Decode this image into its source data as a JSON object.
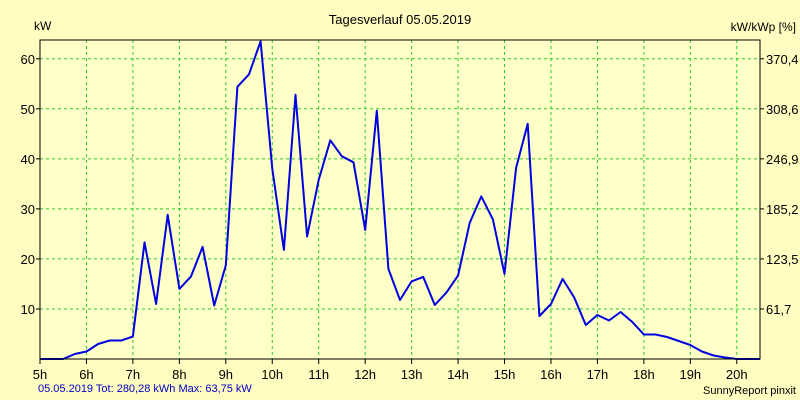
{
  "chart_data": {
    "type": "line",
    "title": "Tagesverlauf 05.05.2019",
    "ylabel_left": "kW",
    "ylabel_right": "kW/kWp [%]",
    "xlim": [
      5,
      20.5
    ],
    "ylim": [
      0,
      63.75
    ],
    "grid": true,
    "x_ticks": [
      5,
      6,
      7,
      8,
      9,
      10,
      11,
      12,
      13,
      14,
      15,
      16,
      17,
      18,
      19,
      20
    ],
    "x_tick_labels": [
      "5h",
      "6h",
      "7h",
      "8h",
      "9h",
      "10h",
      "11h",
      "12h",
      "13h",
      "14h",
      "15h",
      "16h",
      "17h",
      "18h",
      "19h",
      "20h"
    ],
    "y_ticks": [
      10,
      20,
      30,
      40,
      50,
      60
    ],
    "y_tick_labels": [
      "10",
      "20",
      "30",
      "40",
      "50",
      "60"
    ],
    "y2_ticks": [
      10,
      20,
      30,
      40,
      50,
      60
    ],
    "y2_tick_labels": [
      "61,7",
      "123,5",
      "185,2",
      "246,9",
      "308,6",
      "370,4"
    ],
    "series": [
      {
        "color": "#0000e0",
        "x": [
          5.0,
          5.25,
          5.5,
          5.75,
          6.0,
          6.25,
          6.5,
          6.75,
          7.0,
          7.25,
          7.5,
          7.75,
          8.0,
          8.25,
          8.5,
          8.75,
          9.0,
          9.25,
          9.5,
          9.75,
          10.0,
          10.25,
          10.5,
          10.75,
          11.0,
          11.25,
          11.5,
          11.75,
          12.0,
          12.25,
          12.5,
          12.75,
          13.0,
          13.25,
          13.5,
          13.75,
          14.0,
          14.25,
          14.5,
          14.75,
          15.0,
          15.25,
          15.5,
          15.75,
          16.0,
          16.25,
          16.5,
          16.75,
          17.0,
          17.25,
          17.5,
          17.75,
          18.0,
          18.25,
          18.5,
          18.75,
          19.0,
          19.25,
          19.5,
          19.75,
          20.0,
          20.25,
          20.5
        ],
        "y": [
          0,
          0,
          0,
          1,
          1.5,
          3,
          3.7,
          3.7,
          4.5,
          23.3,
          11,
          28.8,
          14,
          16.5,
          22.4,
          10.7,
          18.7,
          54.4,
          56.9,
          63.5,
          38,
          21.8,
          52.8,
          24.5,
          35.8,
          43.7,
          40.5,
          39.3,
          25.8,
          49.6,
          18,
          11.8,
          15.5,
          16.4,
          10.8,
          13.3,
          16.7,
          27.2,
          32.5,
          27.9,
          17,
          38.2,
          47,
          8.6,
          11,
          16,
          12.3,
          6.8,
          8.8,
          7.7,
          9.4,
          7.4,
          4.9,
          4.9,
          4.4,
          3.6,
          2.8,
          1.5,
          0.7,
          0.3,
          0,
          0,
          0
        ]
      }
    ]
  },
  "footer": {
    "summary": "05.05.2019 Tot: 280,28 kWh Max: 63,75 kW",
    "credit": "SunnyReport pinxit"
  }
}
